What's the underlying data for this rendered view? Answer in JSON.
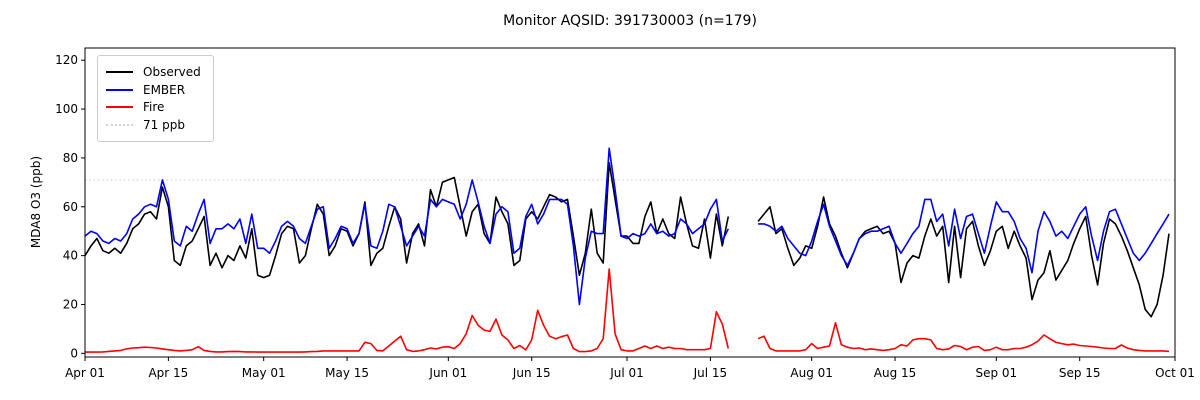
{
  "window": {
    "title": "Monitor AQSID: 391730003 (n=179)"
  },
  "legend": {
    "items": [
      {
        "label": "Observed",
        "color": "#000000",
        "style": "solid"
      },
      {
        "label": "EMBER",
        "color": "#0000ff",
        "style": "solid"
      },
      {
        "label": "Fire",
        "color": "#ff0000",
        "style": "solid"
      },
      {
        "label": "71 ppb",
        "color": "#d3d3d3",
        "style": "dotted"
      }
    ]
  },
  "chart_data": {
    "type": "line",
    "title": "Monitor AQSID: 391730003 (n=179)",
    "n_points": 179,
    "xlabel": "",
    "ylabel": "MDA8 O3 (ppb)",
    "ylim": [
      -1.5,
      125
    ],
    "y_ticks": [
      0,
      20,
      40,
      60,
      80,
      100,
      120
    ],
    "x_total_days": 183,
    "x_start_date": "Apr 01",
    "x_end_date": "Sep 30",
    "x_step": "1 day",
    "missing_dates": [
      "Jul 19",
      "Jul 20",
      "Jul 21",
      "Jul 22"
    ],
    "x_ticks": [
      {
        "day": 0,
        "label": "Apr 01"
      },
      {
        "day": 14,
        "label": "Apr 15"
      },
      {
        "day": 30,
        "label": "May 01"
      },
      {
        "day": 44,
        "label": "May 15"
      },
      {
        "day": 61,
        "label": "Jun 01"
      },
      {
        "day": 75,
        "label": "Jun 15"
      },
      {
        "day": 91,
        "label": "Jul 01"
      },
      {
        "day": 105,
        "label": "Jul 15"
      },
      {
        "day": 122,
        "label": "Aug 01"
      },
      {
        "day": 136,
        "label": "Aug 15"
      },
      {
        "day": 153,
        "label": "Sep 01"
      },
      {
        "day": 167,
        "label": "Sep 15"
      },
      {
        "day": 183,
        "label": "Oct 01"
      }
    ],
    "threshold_line": {
      "value": 71,
      "label": "71 ppb",
      "color": "#d3d3d3",
      "style": "dotted"
    },
    "legend_position": "upper left",
    "grid": false,
    "series": [
      {
        "name": "Observed",
        "color": "#000000",
        "values": [
          40,
          44,
          47,
          42,
          41,
          43,
          41,
          45,
          51,
          53,
          57,
          58,
          55,
          68,
          60,
          38,
          36,
          44,
          46,
          51,
          56,
          36,
          41,
          35,
          40,
          38,
          44,
          39,
          51,
          32,
          31,
          32,
          40,
          49,
          52,
          51,
          37,
          40,
          51,
          61,
          57,
          40,
          44,
          51,
          50,
          44,
          49,
          62,
          36,
          41,
          43,
          52,
          60,
          55,
          37,
          49,
          53,
          44,
          67,
          60,
          70,
          71,
          72,
          60,
          48,
          58,
          61,
          49,
          45,
          64,
          58,
          53,
          36,
          38,
          55,
          58,
          55,
          60,
          65,
          64,
          62,
          63,
          48,
          32,
          41,
          59,
          41,
          37,
          78,
          63,
          48,
          48,
          45,
          45,
          56,
          62,
          49,
          55,
          49,
          47,
          64,
          53,
          44,
          43,
          55,
          39,
          57,
          44,
          56,
          null,
          null,
          null,
          null,
          54,
          57,
          60,
          49,
          51,
          43,
          36,
          39,
          44,
          43,
          52,
          64,
          53,
          48,
          41,
          35,
          41,
          47,
          50,
          51,
          52,
          49,
          50,
          45,
          29,
          37,
          40,
          39,
          48,
          55,
          48,
          52,
          29,
          52,
          31,
          51,
          54,
          44,
          36,
          42,
          50,
          52,
          43,
          50,
          44,
          39,
          22,
          30,
          33,
          42,
          30,
          34,
          38,
          45,
          51,
          56,
          40,
          28,
          45,
          55,
          53,
          48,
          42,
          35,
          28,
          18,
          15,
          20,
          32,
          49
        ]
      },
      {
        "name": "EMBER",
        "color": "#0000ff",
        "values": [
          48,
          50,
          49,
          46,
          45,
          47,
          46,
          49,
          55,
          57,
          60,
          61,
          60,
          71,
          63,
          46,
          44,
          52,
          50,
          57,
          63,
          45,
          51,
          51,
          53,
          51,
          55,
          45,
          57,
          43,
          43,
          41,
          46,
          52,
          54,
          52,
          47,
          45,
          52,
          59,
          60,
          43,
          47,
          52,
          51,
          45,
          49,
          61,
          44,
          43,
          50,
          61,
          60,
          52,
          44,
          48,
          52,
          48,
          63,
          60,
          63,
          62,
          61,
          55,
          61,
          71,
          62,
          52,
          45,
          57,
          60,
          58,
          41,
          43,
          56,
          61,
          53,
          57,
          63,
          63,
          63,
          61,
          44,
          20,
          39,
          50,
          49,
          49,
          84,
          67,
          48,
          47,
          49,
          48,
          49,
          53,
          49,
          50,
          48,
          49,
          55,
          53,
          49,
          51,
          53,
          59,
          63,
          46,
          51,
          null,
          null,
          null,
          null,
          53,
          53,
          52,
          50,
          52,
          47,
          44,
          41,
          40,
          46,
          54,
          61,
          52,
          46,
          40,
          36,
          41,
          47,
          49,
          50,
          50,
          51,
          52,
          45,
          41,
          45,
          49,
          52,
          63,
          63,
          54,
          57,
          44,
          59,
          47,
          56,
          57,
          49,
          41,
          52,
          62,
          58,
          58,
          54,
          47,
          43,
          33,
          50,
          58,
          54,
          48,
          50,
          47,
          52,
          57,
          60,
          48,
          38,
          50,
          58,
          59,
          53,
          47,
          41,
          38,
          41,
          45,
          49,
          53,
          57
        ]
      },
      {
        "name": "Fire",
        "color": "#ff0000",
        "values": [
          0.5,
          0.5,
          0.5,
          0.6,
          0.8,
          1,
          1.2,
          1.8,
          2.2,
          2.3,
          2.5,
          2.4,
          2.2,
          1.8,
          1.5,
          1.2,
          1,
          1.2,
          1.5,
          2.7,
          1.2,
          0.8,
          0.6,
          0.6,
          0.7,
          0.8,
          0.7,
          0.6,
          0.6,
          0.5,
          0.5,
          0.5,
          0.5,
          0.5,
          0.5,
          0.5,
          0.5,
          0.6,
          0.7,
          0.8,
          1,
          1,
          1,
          1,
          1,
          1,
          1,
          4.5,
          4,
          1.2,
          1,
          3,
          5,
          7,
          1.5,
          0.8,
          1,
          1.5,
          2.2,
          1.8,
          2.5,
          2.7,
          2,
          4,
          8,
          15.5,
          11.5,
          9.5,
          9,
          14,
          7.5,
          5.5,
          2,
          3.2,
          1.4,
          5.5,
          17.6,
          11.5,
          7,
          6,
          6.8,
          7.5,
          2,
          0.7,
          0.7,
          1,
          2,
          6,
          34.5,
          8,
          1.5,
          1,
          1,
          2,
          3,
          2,
          3,
          2,
          2.5,
          2,
          2,
          1.5,
          1.5,
          1.5,
          1.5,
          2,
          17,
          12,
          2,
          null,
          null,
          null,
          null,
          6,
          7,
          2,
          1,
          1,
          1,
          1,
          1,
          1.5,
          4,
          2,
          2.5,
          3,
          12.5,
          3.5,
          2.5,
          2,
          2.2,
          1.5,
          1.8,
          1.5,
          1.2,
          1.5,
          2,
          3.5,
          3,
          5.5,
          6,
          6,
          5.5,
          2,
          1.5,
          1.8,
          3.2,
          2.8,
          1.5,
          2.5,
          2.8,
          1.2,
          1.5,
          2.5,
          1.5,
          1.5,
          2,
          2,
          2.5,
          3.5,
          5,
          7.5,
          6,
          4.5,
          4,
          3.5,
          3.8,
          3.2,
          3,
          2.8,
          2.5,
          2.2,
          2,
          2,
          3.4,
          2.2,
          1.5,
          1.2,
          1,
          1,
          1,
          1,
          0.8
        ]
      }
    ]
  }
}
